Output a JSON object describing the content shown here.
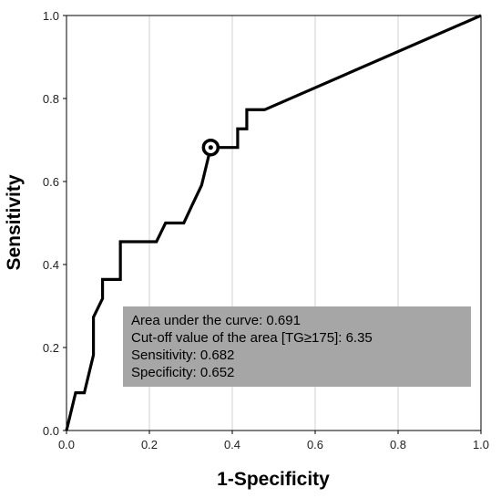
{
  "chart_data": {
    "type": "line",
    "xlabel": "1-Specificity",
    "ylabel": "Sensitivity",
    "xlim": [
      0.0,
      1.0
    ],
    "ylim": [
      0.0,
      1.0
    ],
    "x_ticks": [
      "0.0",
      "0.2",
      "0.4",
      "0.6",
      "0.8",
      "1.0"
    ],
    "y_ticks": [
      "0.0",
      "0.2",
      "0.4",
      "0.6",
      "0.8",
      "1.0"
    ],
    "grid": "vertical",
    "series": [
      {
        "x": [
          0.0,
          0.022,
          0.022,
          0.043,
          0.043,
          0.065,
          0.065,
          0.065,
          0.087,
          0.087,
          0.109,
          0.13,
          0.13,
          0.152,
          0.174,
          0.174,
          0.196,
          0.217,
          0.239,
          0.239,
          0.261,
          0.283,
          0.304,
          0.304,
          0.326,
          0.326,
          0.348,
          0.348,
          0.37,
          0.391,
          0.413,
          0.413,
          0.435,
          0.435,
          0.457,
          0.478,
          1.0
        ],
        "y": [
          0.0,
          0.091,
          0.091,
          0.091,
          0.091,
          0.182,
          0.273,
          0.273,
          0.318,
          0.364,
          0.364,
          0.364,
          0.455,
          0.455,
          0.455,
          0.455,
          0.455,
          0.455,
          0.5,
          0.5,
          0.5,
          0.5,
          0.545,
          0.545,
          0.591,
          0.591,
          0.682,
          0.682,
          0.682,
          0.682,
          0.682,
          0.727,
          0.727,
          0.773,
          0.773,
          0.773,
          1.0
        ]
      }
    ],
    "line_color": "#000000",
    "cutoff_point": {
      "x": 0.348,
      "y": 0.682
    },
    "annotation": {
      "lines": [
        "Area under the curve: 0.691",
        "Cut-off value of the area [TG≥175]: 6.35",
        "Sensitivity: 0.682",
        "Specificity: 0.652"
      ],
      "background": "#a6a6a6"
    }
  }
}
